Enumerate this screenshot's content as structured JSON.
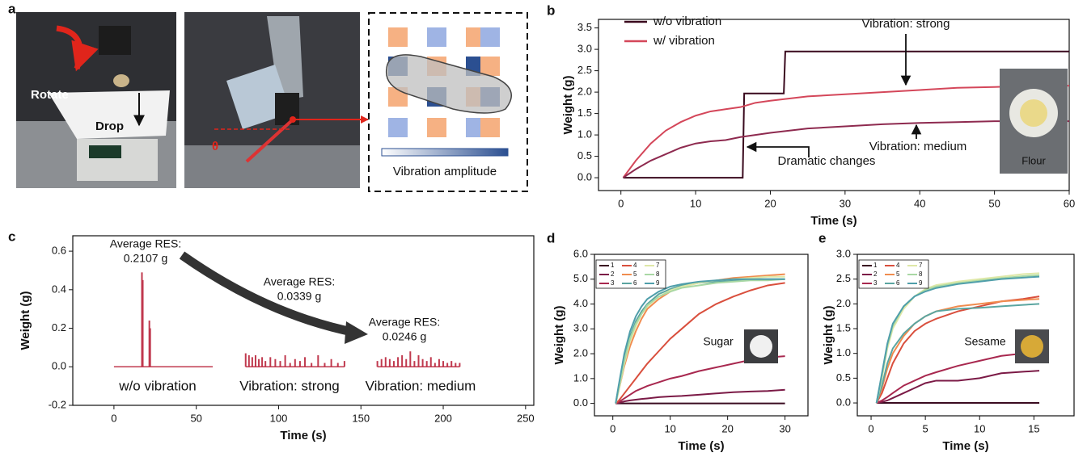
{
  "panel_labels": [
    "a",
    "b",
    "c",
    "d",
    "e"
  ],
  "panel_a": {
    "texts": [
      "Rotate",
      "Drop",
      "θ",
      "Vibration amplitude"
    ]
  },
  "chart_data": [
    {
      "type": "line",
      "xlabel": "Time (s)",
      "ylabel": "Weight (g)",
      "xlim": [
        -3,
        60
      ],
      "ylim": [
        -0.3,
        3.7
      ],
      "xticks": [
        0,
        10,
        20,
        30,
        40,
        50,
        60
      ],
      "yticks": [
        {
          "value": 0,
          "label": "0.0"
        },
        0.5,
        {
          "value": 1,
          "label": "1.0"
        },
        1.5,
        {
          "value": 2,
          "label": "2.0"
        },
        2.5,
        {
          "value": 3,
          "label": "3.0"
        },
        3.5
      ],
      "legend": "upper left",
      "series": [
        {
          "name": "w/o vibration",
          "color": "#3a0a1e",
          "x": [
            0.3,
            16.3,
            16.5,
            21.8,
            22,
            60
          ],
          "values": [
            0,
            0,
            1.97,
            1.97,
            2.95,
            2.95
          ]
        },
        {
          "name": "w/ vibration",
          "color": "#d4475a",
          "x": [
            0.3,
            2,
            4,
            6,
            8,
            10,
            12,
            14,
            16,
            18,
            20,
            25,
            30,
            35,
            40,
            45,
            50,
            55,
            60
          ],
          "values": [
            0,
            0.4,
            0.8,
            1.1,
            1.3,
            1.45,
            1.55,
            1.6,
            1.65,
            1.75,
            1.8,
            1.9,
            1.95,
            2.0,
            2.05,
            2.1,
            2.12,
            2.15,
            2.15
          ]
        },
        {
          "color": "#8e2a4f",
          "x": [
            0.3,
            2,
            4,
            6,
            8,
            10,
            12,
            14,
            16,
            18,
            20,
            25,
            30,
            35,
            40,
            45,
            50,
            55,
            60
          ],
          "values": [
            0,
            0.2,
            0.4,
            0.55,
            0.7,
            0.8,
            0.85,
            0.88,
            0.95,
            1.0,
            1.05,
            1.15,
            1.2,
            1.25,
            1.28,
            1.3,
            1.32,
            1.32,
            1.32
          ]
        }
      ],
      "annotations": [
        "Vibration: strong",
        "Vibration: medium",
        "Dramatic changes",
        "Flour"
      ]
    },
    {
      "type": "stem",
      "xlabel": "Time (s)",
      "ylabel": "Weight (g)",
      "xlim": [
        -25,
        255
      ],
      "ylim": [
        -0.2,
        0.68
      ],
      "xticks": [
        0,
        50,
        100,
        150,
        200,
        250
      ],
      "yticks": [
        -0.2,
        {
          "value": 0,
          "label": "0.0"
        },
        0.2,
        0.4,
        0.6
      ],
      "series": [
        {
          "color": "#c0394e",
          "x": [
            0,
            17,
            17.5,
            21.5,
            22,
            60
          ],
          "values": [
            0,
            0.49,
            0.45,
            0.24,
            0.2,
            0
          ]
        },
        {
          "color": "#c0394e",
          "x": [
            80,
            82,
            84,
            86,
            88,
            90,
            92,
            95,
            98,
            101,
            104,
            107,
            110,
            113,
            116,
            120,
            124,
            128,
            132,
            136,
            140
          ],
          "values": [
            0.07,
            0.06,
            0.05,
            0.06,
            0.04,
            0.05,
            0.03,
            0.05,
            0.04,
            0.03,
            0.06,
            0.02,
            0.04,
            0.03,
            0.05,
            0.02,
            0.06,
            0.02,
            0.04,
            0.02,
            0.03
          ]
        },
        {
          "color": "#c0394e",
          "x": [
            160,
            162.5,
            165,
            167.5,
            170,
            172.5,
            175,
            177.5,
            180,
            182.5,
            185,
            187.5,
            190,
            192.5,
            195,
            197.5,
            200,
            202.5,
            205,
            207.5,
            210
          ],
          "values": [
            0.03,
            0.04,
            0.05,
            0.04,
            0.03,
            0.05,
            0.06,
            0.04,
            0.08,
            0.03,
            0.06,
            0.04,
            0.03,
            0.05,
            0.02,
            0.04,
            0.03,
            0.02,
            0.03,
            0.02,
            0.02
          ]
        }
      ],
      "annotations": [
        "Average RES:",
        "0.2107 g",
        "Average RES:",
        "0.0339 g",
        "Average RES:",
        "0.0246 g",
        "w/o vibration",
        "Vibration: strong",
        "Vibration: medium"
      ]
    },
    {
      "type": "line",
      "xlabel": "Time (s)",
      "ylabel": "Weight (g)",
      "xlim": [
        -3.2,
        34
      ],
      "ylim": [
        -0.5,
        6.0
      ],
      "xticks": [
        0,
        10,
        20,
        30
      ],
      "yticks": [
        {
          "value": 0,
          "label": "0.0"
        },
        {
          "value": 1,
          "label": "1.0"
        },
        {
          "value": 2,
          "label": "2.0"
        },
        {
          "value": 3,
          "label": "3.0"
        },
        {
          "value": 4,
          "label": "4.0"
        },
        {
          "value": 5,
          "label": "5.0"
        },
        {
          "value": 6,
          "label": "6.0"
        }
      ],
      "legend": "upper left",
      "x": [
        0.5,
        1,
        2,
        3,
        4,
        5,
        6,
        8,
        10,
        12,
        15,
        18,
        21,
        24,
        27,
        30
      ],
      "series": [
        {
          "name": "1",
          "color": "#3a0b20",
          "values": [
            0,
            0,
            0,
            0,
            0,
            0,
            0,
            0,
            0,
            0,
            0,
            0,
            0,
            0,
            0,
            0
          ]
        },
        {
          "name": "2",
          "color": "#7b1a46",
          "values": [
            0,
            0.02,
            0.08,
            0.12,
            0.15,
            0.18,
            0.2,
            0.25,
            0.28,
            0.3,
            0.35,
            0.4,
            0.45,
            0.48,
            0.5,
            0.55
          ]
        },
        {
          "name": "3",
          "color": "#a8284f",
          "values": [
            0,
            0.05,
            0.2,
            0.35,
            0.5,
            0.6,
            0.7,
            0.85,
            1.0,
            1.1,
            1.3,
            1.45,
            1.6,
            1.75,
            1.85,
            1.9
          ]
        },
        {
          "name": "4",
          "color": "#d94f3d",
          "values": [
            0,
            0.1,
            0.4,
            0.7,
            1.0,
            1.3,
            1.6,
            2.1,
            2.6,
            3.0,
            3.6,
            4.0,
            4.3,
            4.55,
            4.75,
            4.85
          ]
        },
        {
          "name": "5",
          "color": "#f08c4f",
          "values": [
            0,
            0.5,
            1.5,
            2.3,
            2.9,
            3.4,
            3.8,
            4.2,
            4.5,
            4.7,
            4.85,
            4.95,
            5.05,
            5.1,
            5.15,
            5.2
          ]
        },
        {
          "name": "6",
          "color": "#5aa5a0",
          "values": [
            0,
            0.6,
            1.8,
            2.7,
            3.3,
            3.7,
            4.0,
            4.4,
            4.6,
            4.75,
            4.85,
            4.9,
            4.95,
            5.0,
            5.0,
            5.0
          ]
        },
        {
          "name": "7",
          "color": "#dfe8a8",
          "values": [
            0,
            0.5,
            1.6,
            2.5,
            3.1,
            3.6,
            3.9,
            4.3,
            4.55,
            4.7,
            4.85,
            4.95,
            5.0,
            5.05,
            5.1,
            5.1
          ]
        },
        {
          "name": "8",
          "color": "#a9d8a4",
          "values": [
            0,
            0.55,
            1.7,
            2.6,
            3.2,
            3.6,
            3.95,
            4.3,
            4.5,
            4.65,
            4.75,
            4.85,
            4.9,
            4.95,
            4.95,
            5.0
          ]
        },
        {
          "name": "9",
          "color": "#4f9eaa",
          "values": [
            0,
            0.7,
            2.0,
            2.9,
            3.5,
            3.9,
            4.2,
            4.5,
            4.7,
            4.8,
            4.9,
            4.95,
            5.0,
            5.0,
            5.0,
            5.0
          ]
        }
      ],
      "annotations": [
        "Sugar"
      ]
    },
    {
      "type": "line",
      "xlabel": "Time (s)",
      "ylabel": "Weight (g)",
      "xlim": [
        -1.27,
        18.7
      ],
      "ylim": [
        -0.26,
        3.0
      ],
      "xticks": [
        0,
        5,
        10,
        15
      ],
      "yticks": [
        {
          "value": 0,
          "label": "0.0"
        },
        0.5,
        {
          "value": 1,
          "label": "1.0"
        },
        1.5,
        {
          "value": 2,
          "label": "2.0"
        },
        2.5,
        {
          "value": 3,
          "label": "3.0"
        }
      ],
      "legend": "upper left",
      "x": [
        0.5,
        1,
        1.5,
        2,
        3,
        4,
        5,
        6,
        8,
        10,
        12,
        14,
        15.5
      ],
      "series": [
        {
          "name": "1",
          "color": "#3a0b20",
          "values": [
            0,
            0,
            0,
            0,
            0,
            0,
            0,
            0,
            0,
            0,
            0,
            0,
            0
          ]
        },
        {
          "name": "2",
          "color": "#7b1a46",
          "values": [
            0,
            0.02,
            0.05,
            0.1,
            0.2,
            0.3,
            0.4,
            0.45,
            0.45,
            0.5,
            0.6,
            0.63,
            0.65
          ]
        },
        {
          "name": "3",
          "color": "#a8284f",
          "values": [
            0,
            0.05,
            0.12,
            0.2,
            0.35,
            0.45,
            0.55,
            0.62,
            0.75,
            0.85,
            0.95,
            1.0,
            1.02
          ]
        },
        {
          "name": "4",
          "color": "#d94f3d",
          "values": [
            0,
            0.2,
            0.5,
            0.8,
            1.2,
            1.45,
            1.6,
            1.7,
            1.85,
            1.95,
            2.05,
            2.1,
            2.15
          ]
        },
        {
          "name": "5",
          "color": "#f08c4f",
          "values": [
            0,
            0.3,
            0.7,
            1.0,
            1.35,
            1.6,
            1.75,
            1.85,
            1.95,
            2.0,
            2.05,
            2.08,
            2.1
          ]
        },
        {
          "name": "6",
          "color": "#5aa5a0",
          "values": [
            0,
            0.35,
            0.8,
            1.1,
            1.4,
            1.6,
            1.75,
            1.85,
            1.9,
            1.92,
            1.95,
            1.98,
            2.0
          ]
        },
        {
          "name": "7",
          "color": "#dfe8a8",
          "values": [
            0,
            0.5,
            1.1,
            1.5,
            1.9,
            2.15,
            2.3,
            2.38,
            2.45,
            2.5,
            2.55,
            2.6,
            2.62
          ]
        },
        {
          "name": "8",
          "color": "#a9d8a4",
          "values": [
            0,
            0.55,
            1.15,
            1.55,
            1.95,
            2.15,
            2.28,
            2.35,
            2.42,
            2.47,
            2.52,
            2.56,
            2.58
          ]
        },
        {
          "name": "9",
          "color": "#4f9eaa",
          "values": [
            0,
            0.6,
            1.2,
            1.6,
            1.95,
            2.15,
            2.25,
            2.32,
            2.4,
            2.45,
            2.5,
            2.53,
            2.55
          ]
        }
      ],
      "annotations": [
        "Sesame"
      ]
    }
  ]
}
